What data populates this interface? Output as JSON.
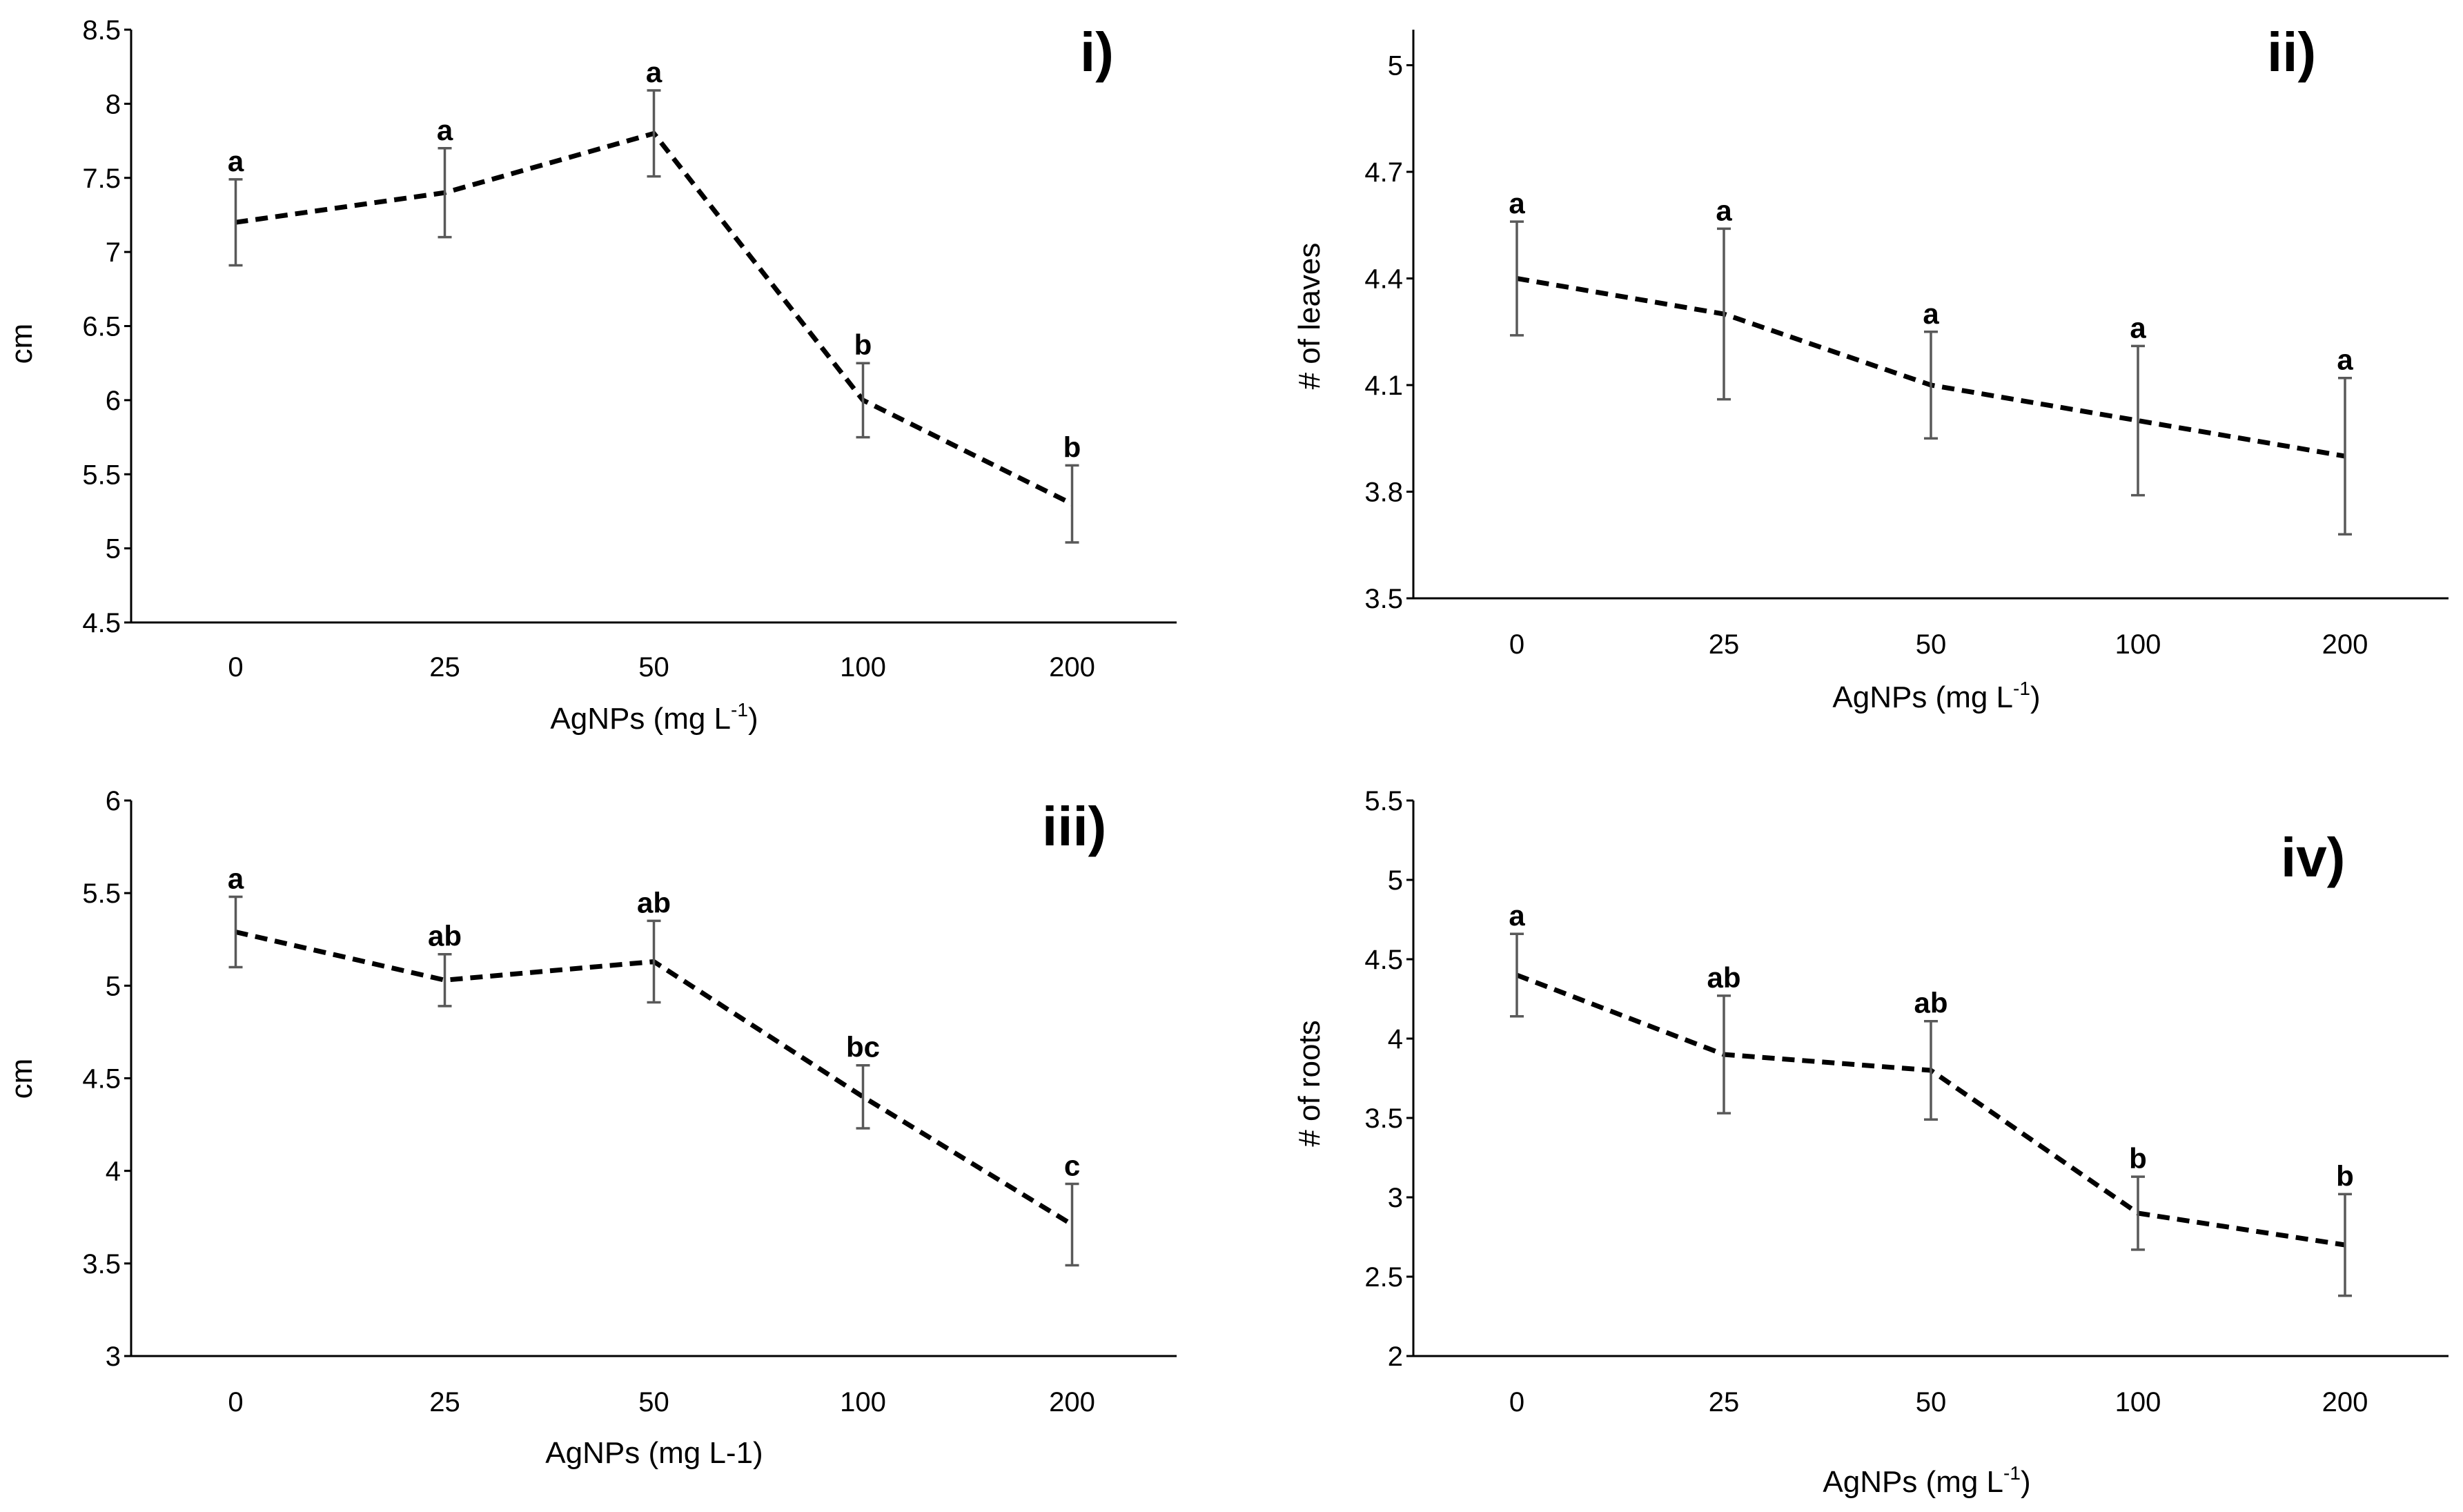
{
  "chart_data": [
    {
      "type": "line",
      "panel": "i)",
      "categories": [
        "0",
        "25",
        "50",
        "100",
        "200"
      ],
      "series": [
        {
          "values": [
            7.2,
            7.4,
            7.8,
            6.0,
            5.3
          ],
          "errors": [
            0.29,
            0.3,
            0.29,
            0.25,
            0.26
          ]
        }
      ],
      "significance": [
        "a",
        "a",
        "a",
        "b",
        "b"
      ],
      "ylabel": "cm",
      "xlabel_base": "AgNPs (mg L",
      "xlabel_sup": "-1",
      "xlabel_end": ")",
      "ylim": [
        4.5,
        8.5
      ],
      "yticks": [
        "4.5",
        "5",
        "5.5",
        "6",
        "6.5",
        "7",
        "7.5",
        "8",
        "8.5"
      ],
      "grid": false
    },
    {
      "type": "line",
      "panel": "ii)",
      "categories": [
        "0",
        "25",
        "50",
        "100",
        "200"
      ],
      "series": [
        {
          "values": [
            4.4,
            4.3,
            4.1,
            4.0,
            3.9
          ],
          "errors": [
            0.16,
            0.24,
            0.15,
            0.21,
            0.22
          ]
        }
      ],
      "significance": [
        "a",
        "a",
        "a",
        "a",
        "a"
      ],
      "ylabel": "# of leaves",
      "xlabel_base": "AgNPs (mg L",
      "xlabel_sup": "-1",
      "xlabel_end": ")",
      "ylim": [
        3.5,
        5.1
      ],
      "yticks": [
        "3.5",
        "3.8",
        "4.1",
        "4.4",
        "4.7",
        "5"
      ],
      "grid": false
    },
    {
      "type": "line",
      "panel": "iii)",
      "categories": [
        "0",
        "25",
        "50",
        "100",
        "200"
      ],
      "series": [
        {
          "values": [
            5.29,
            5.03,
            5.13,
            4.4,
            3.71
          ],
          "errors": [
            0.19,
            0.14,
            0.22,
            0.17,
            0.22
          ]
        }
      ],
      "significance": [
        "a",
        "ab",
        "ab",
        "bc",
        "c"
      ],
      "ylabel": "cm",
      "xlabel_base": "AgNPs (mg L-1)",
      "xlabel_sup": "",
      "xlabel_end": "",
      "ylim": [
        3,
        6
      ],
      "yticks": [
        "3",
        "3.5",
        "4",
        "4.5",
        "5",
        "5.5",
        "6"
      ],
      "grid": false
    },
    {
      "type": "line",
      "panel": "iv)",
      "categories": [
        "0",
        "25",
        "50",
        "100",
        "200"
      ],
      "series": [
        {
          "values": [
            4.4,
            3.9,
            3.8,
            2.9,
            2.7
          ],
          "errors": [
            0.26,
            0.37,
            0.31,
            0.23,
            0.32
          ]
        }
      ],
      "significance": [
        "a",
        "ab",
        "ab",
        "b",
        "b"
      ],
      "ylabel": "# of roots",
      "xlabel_base": "AgNPs (mg L",
      "xlabel_sup": "-1",
      "xlabel_end": ")",
      "ylim": [
        2,
        5.5
      ],
      "yticks": [
        "2",
        "2.5",
        "3",
        "3.5",
        "4",
        "4.5",
        "5",
        "5.5"
      ],
      "grid": false
    }
  ]
}
